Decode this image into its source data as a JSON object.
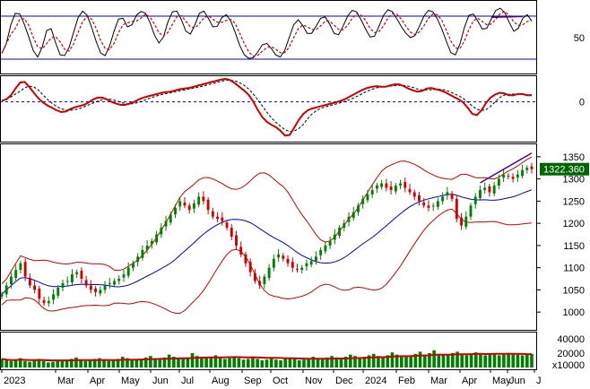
{
  "chart_data": [
    {
      "panel": "stochastic-oscillator",
      "type": "line",
      "ylim": [
        0,
        100
      ],
      "reference_lines": [
        80,
        20
      ],
      "tick_labels": [
        "50"
      ],
      "series": [
        {
          "color": "#000000",
          "style": "solid"
        },
        {
          "color": "#cc0000",
          "style": "dashed"
        }
      ],
      "k_values": [
        28,
        55,
        80,
        88,
        78,
        60,
        42,
        22,
        24,
        50,
        70,
        55,
        30,
        22,
        28,
        45,
        70,
        86,
        88,
        74,
        55,
        35,
        22,
        28,
        48,
        70,
        82,
        72,
        58,
        78,
        85,
        88,
        80,
        62,
        45,
        40,
        62,
        82,
        90,
        84,
        66,
        52,
        58,
        78,
        90,
        84,
        70,
        60,
        72,
        84,
        80,
        66,
        48,
        30,
        22,
        20,
        24,
        36,
        44,
        40,
        30,
        22,
        24,
        40,
        60,
        76,
        74,
        60,
        52,
        60,
        72,
        82,
        76,
        62,
        50,
        58,
        74,
        86,
        90,
        82,
        68,
        56,
        46,
        58,
        74,
        88,
        90,
        82,
        70,
        60,
        52,
        48,
        58,
        74,
        86,
        90,
        82,
        70,
        54,
        36,
        22,
        30,
        52,
        76,
        86,
        80,
        66,
        58,
        68,
        84,
        92,
        90,
        80,
        62,
        56,
        70,
        84,
        80,
        66
      ],
      "divergence_line_color": "#4b0082"
    },
    {
      "panel": "macd",
      "type": "line",
      "zero_line": 0,
      "tick_labels": [
        "0"
      ],
      "series": [
        {
          "color": "#cc0000",
          "style": "solid"
        },
        {
          "color": "#000000",
          "style": "dashed"
        }
      ],
      "values": [
        1,
        3,
        8,
        14,
        18,
        15,
        10,
        5,
        1,
        -2,
        -4,
        -6,
        -8,
        -9,
        -7,
        -5,
        -4,
        -3,
        -2,
        1,
        3,
        4,
        3,
        1,
        -1,
        -2,
        -3,
        -2,
        -1,
        1,
        3,
        4,
        5,
        6,
        7,
        8,
        8,
        9,
        10,
        11,
        11,
        12,
        13,
        14,
        15,
        16,
        17,
        18,
        19,
        19,
        17,
        14,
        11,
        8,
        4,
        -3,
        -10,
        -15,
        -18,
        -20,
        -22,
        -26,
        -30,
        -25,
        -18,
        -12,
        -8,
        -6,
        -5,
        -4,
        -3,
        -2,
        -1,
        0,
        1,
        3,
        5,
        7,
        9,
        11,
        12,
        13,
        13,
        12,
        13,
        14,
        15,
        14,
        12,
        10,
        9,
        8,
        10,
        12,
        11,
        10,
        9,
        7,
        5,
        3,
        1,
        -2,
        -8,
        -12,
        -10,
        -4,
        2,
        5,
        7,
        8,
        6,
        5,
        6,
        7,
        6,
        5,
        6
      ]
    },
    {
      "panel": "price",
      "type": "candlestick",
      "ylim": [
        960,
        1380
      ],
      "yticks": [
        1000,
        1050,
        1100,
        1150,
        1200,
        1250,
        1300,
        1350
      ],
      "x_labels": [
        "2023",
        "Mar",
        "Apr",
        "May",
        "Jun",
        "Jul",
        "Aug",
        "Sep",
        "Oct",
        "Nov",
        "Dec",
        "2024",
        "Feb",
        "Mar",
        "Apr",
        "May",
        "Jun",
        "J"
      ],
      "bollinger_band_color": "#cc0000",
      "moving_average_color": "#0000cc",
      "up_color": "#008000",
      "down_color": "#cc0000",
      "last_price_label": "1322.360",
      "last_price_badge_color": "#006400",
      "close_values": [
        1040,
        1060,
        1080,
        1095,
        1110,
        1080,
        1060,
        1050,
        1030,
        1020,
        1025,
        1040,
        1055,
        1065,
        1070,
        1085,
        1090,
        1075,
        1060,
        1050,
        1045,
        1050,
        1060,
        1065,
        1070,
        1075,
        1085,
        1100,
        1110,
        1125,
        1140,
        1150,
        1160,
        1175,
        1190,
        1205,
        1220,
        1235,
        1250,
        1240,
        1230,
        1245,
        1260,
        1250,
        1230,
        1215,
        1210,
        1205,
        1190,
        1170,
        1150,
        1130,
        1110,
        1090,
        1070,
        1060,
        1080,
        1100,
        1120,
        1130,
        1120,
        1110,
        1100,
        1095,
        1100,
        1110,
        1115,
        1125,
        1140,
        1150,
        1160,
        1175,
        1190,
        1200,
        1215,
        1225,
        1240,
        1255,
        1265,
        1275,
        1285,
        1290,
        1280,
        1275,
        1285,
        1290,
        1280,
        1270,
        1260,
        1250,
        1240,
        1235,
        1240,
        1250,
        1260,
        1270,
        1255,
        1210,
        1195,
        1215,
        1240,
        1260,
        1275,
        1280,
        1270,
        1285,
        1300,
        1310,
        1305,
        1300,
        1310,
        1320,
        1325,
        1322
      ]
    },
    {
      "panel": "volume",
      "type": "bar",
      "ylim": [
        0,
        50000
      ],
      "ytick_labels": [
        "40000",
        "20000"
      ],
      "unit_label": "x10000",
      "bar_color": "#008000",
      "ma_color": "#cc0000",
      "values": [
        12000,
        10000,
        9000,
        11000,
        13000,
        9000,
        8000,
        10000,
        12000,
        9000,
        7000,
        8000,
        11000,
        10000,
        9000,
        12000,
        14000,
        11000,
        9000,
        10000,
        12000,
        13000,
        11000,
        9000,
        10000,
        12000,
        15000,
        13000,
        11000,
        10000,
        12000,
        14000,
        16000,
        13000,
        12000,
        14000,
        18000,
        15000,
        13000,
        12000,
        14000,
        20000,
        16000,
        14000,
        13000,
        15000,
        17000,
        14000,
        12000,
        13000,
        15000,
        13000,
        11000,
        12000,
        14000,
        12000,
        10000,
        11000,
        13000,
        11000,
        10000,
        12000,
        14000,
        12000,
        10000,
        11000,
        13000,
        15000,
        13000,
        12000,
        14000,
        16000,
        14000,
        13000,
        15000,
        18000,
        16000,
        14000,
        15000,
        17000,
        19000,
        16000,
        15000,
        17000,
        21000,
        18000,
        16000,
        15000,
        17000,
        19000,
        22000,
        18000,
        20000,
        24000,
        19000,
        17000,
        18000,
        20000,
        22000,
        18000,
        17000,
        19000,
        21000,
        18000,
        17000,
        19000,
        20000,
        17000,
        18000,
        20000,
        19000,
        18000,
        17000,
        18000,
        19000
      ]
    }
  ]
}
